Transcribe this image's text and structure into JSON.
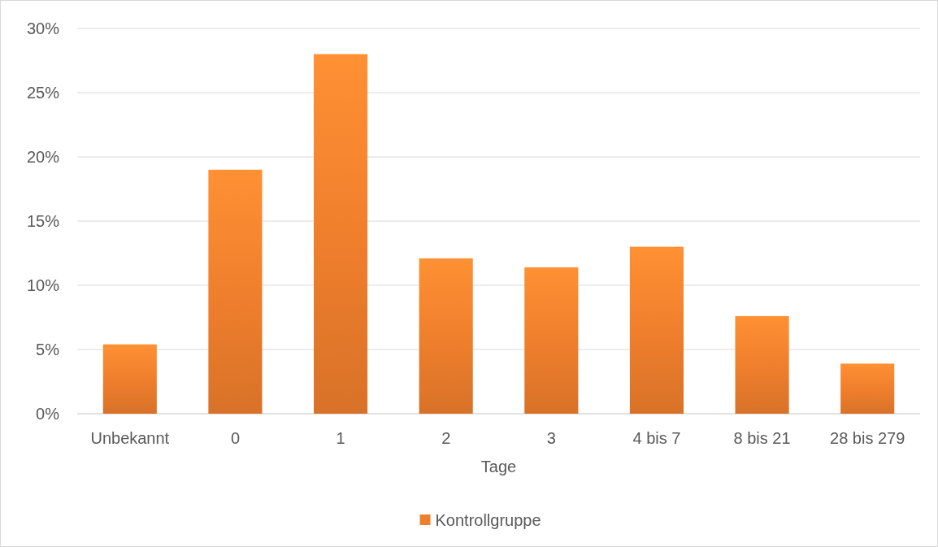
{
  "chart_data": {
    "type": "bar",
    "xlabel": "Tage",
    "categories": [
      "Unbekannt",
      "0",
      "1",
      "2",
      "3",
      "4 bis 7",
      "8 bis 21",
      "28 bis 279"
    ],
    "series": [
      {
        "name": "Kontrollgruppe",
        "color": "#f07f2d",
        "values": [
          5.4,
          19.0,
          28.0,
          12.1,
          11.4,
          13.0,
          7.6,
          3.9
        ]
      }
    ],
    "ylim": [
      0,
      30
    ],
    "yticks": [
      {
        "value": 0,
        "label": "0%"
      },
      {
        "value": 5,
        "label": "5%"
      },
      {
        "value": 10,
        "label": "10%"
      },
      {
        "value": 15,
        "label": "15%"
      },
      {
        "value": 20,
        "label": "20%"
      },
      {
        "value": 25,
        "label": "25%"
      },
      {
        "value": 30,
        "label": "30%"
      }
    ],
    "grid": "y",
    "legend": "bottom"
  }
}
